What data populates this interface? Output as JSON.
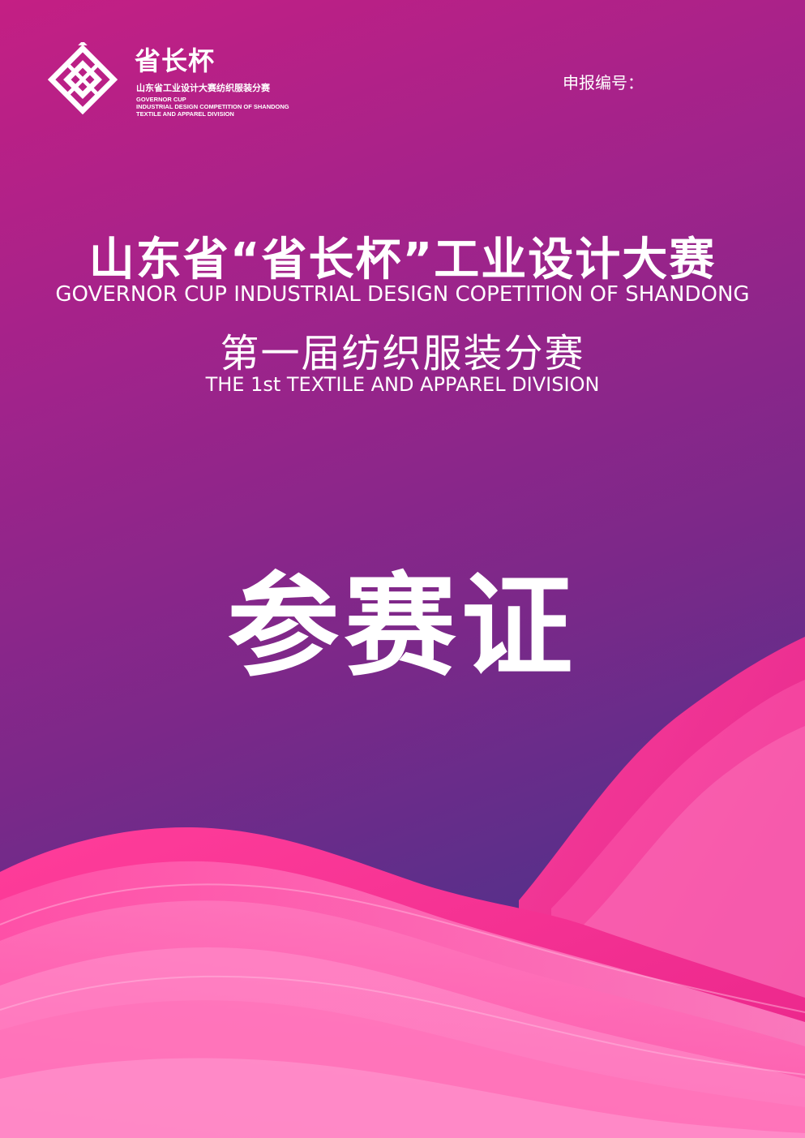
{
  "logo": {
    "title": "省长杯",
    "subtitle_cn": "山东省工业设计大赛纺织服装分赛",
    "en_line1": "GOVERNOR CUP",
    "en_line2": "INDUSTRIAL DESIGN COMPETITION OF SHANDONG",
    "en_line3": "TEXTILE AND APPAREL DIVISION",
    "icon": "governor-cup-logo-mark"
  },
  "header": {
    "report_number_label": "申报编号："
  },
  "main": {
    "title_cn": "山东省“省长杯”工业设计大赛",
    "title_en": "GOVERNOR CUP INDUSTRIAL DESIGN COPETITION OF SHANDONG",
    "subtitle_cn": "第一届纺织服装分赛",
    "subtitle_en": "THE 1st TEXTILE AND APPAREL DIVISION",
    "badge_title": "参赛证"
  },
  "colors": {
    "bg_top": "#c41f84",
    "bg_bottom": "#4a2f86",
    "wave_pink": "#ff4fa6",
    "wave_light": "#ff8cc8",
    "text": "#ffffff"
  }
}
